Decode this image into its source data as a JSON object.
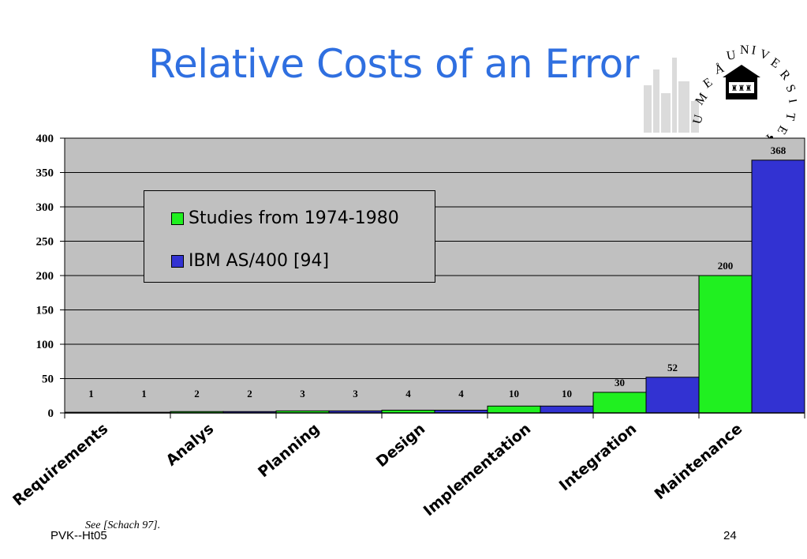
{
  "slide": {
    "title": "Relative Costs of an Error",
    "source": "See [Schach 97].",
    "footer_left": "PVK--Ht05",
    "page_number": "24"
  },
  "logo": {
    "ring_text": "UMEÅ UNIVERSITET"
  },
  "colors": {
    "title": "#2f6fe0",
    "plot_background": "#c0c0c0",
    "series1": "#20f020",
    "series2": "#3232d2"
  },
  "chart_data": {
    "type": "bar",
    "categories": [
      "Requirements",
      "Analys",
      "Planning",
      "Design",
      "Implementation",
      "Integration",
      "Maintenance"
    ],
    "series": [
      {
        "name": "Studies from 1974-1980",
        "values": [
          1,
          2,
          3,
          4,
          10,
          30,
          200
        ]
      },
      {
        "name": "IBM AS/400 [94]",
        "values": [
          1,
          2,
          3,
          4,
          10,
          52,
          368
        ]
      }
    ],
    "ylim": [
      0,
      400
    ],
    "yticks": [
      "0",
      "50",
      "100",
      "150",
      "200",
      "250",
      "300",
      "350",
      "400"
    ],
    "grid": true,
    "legend_position": "upper-left",
    "data_labels": true
  }
}
